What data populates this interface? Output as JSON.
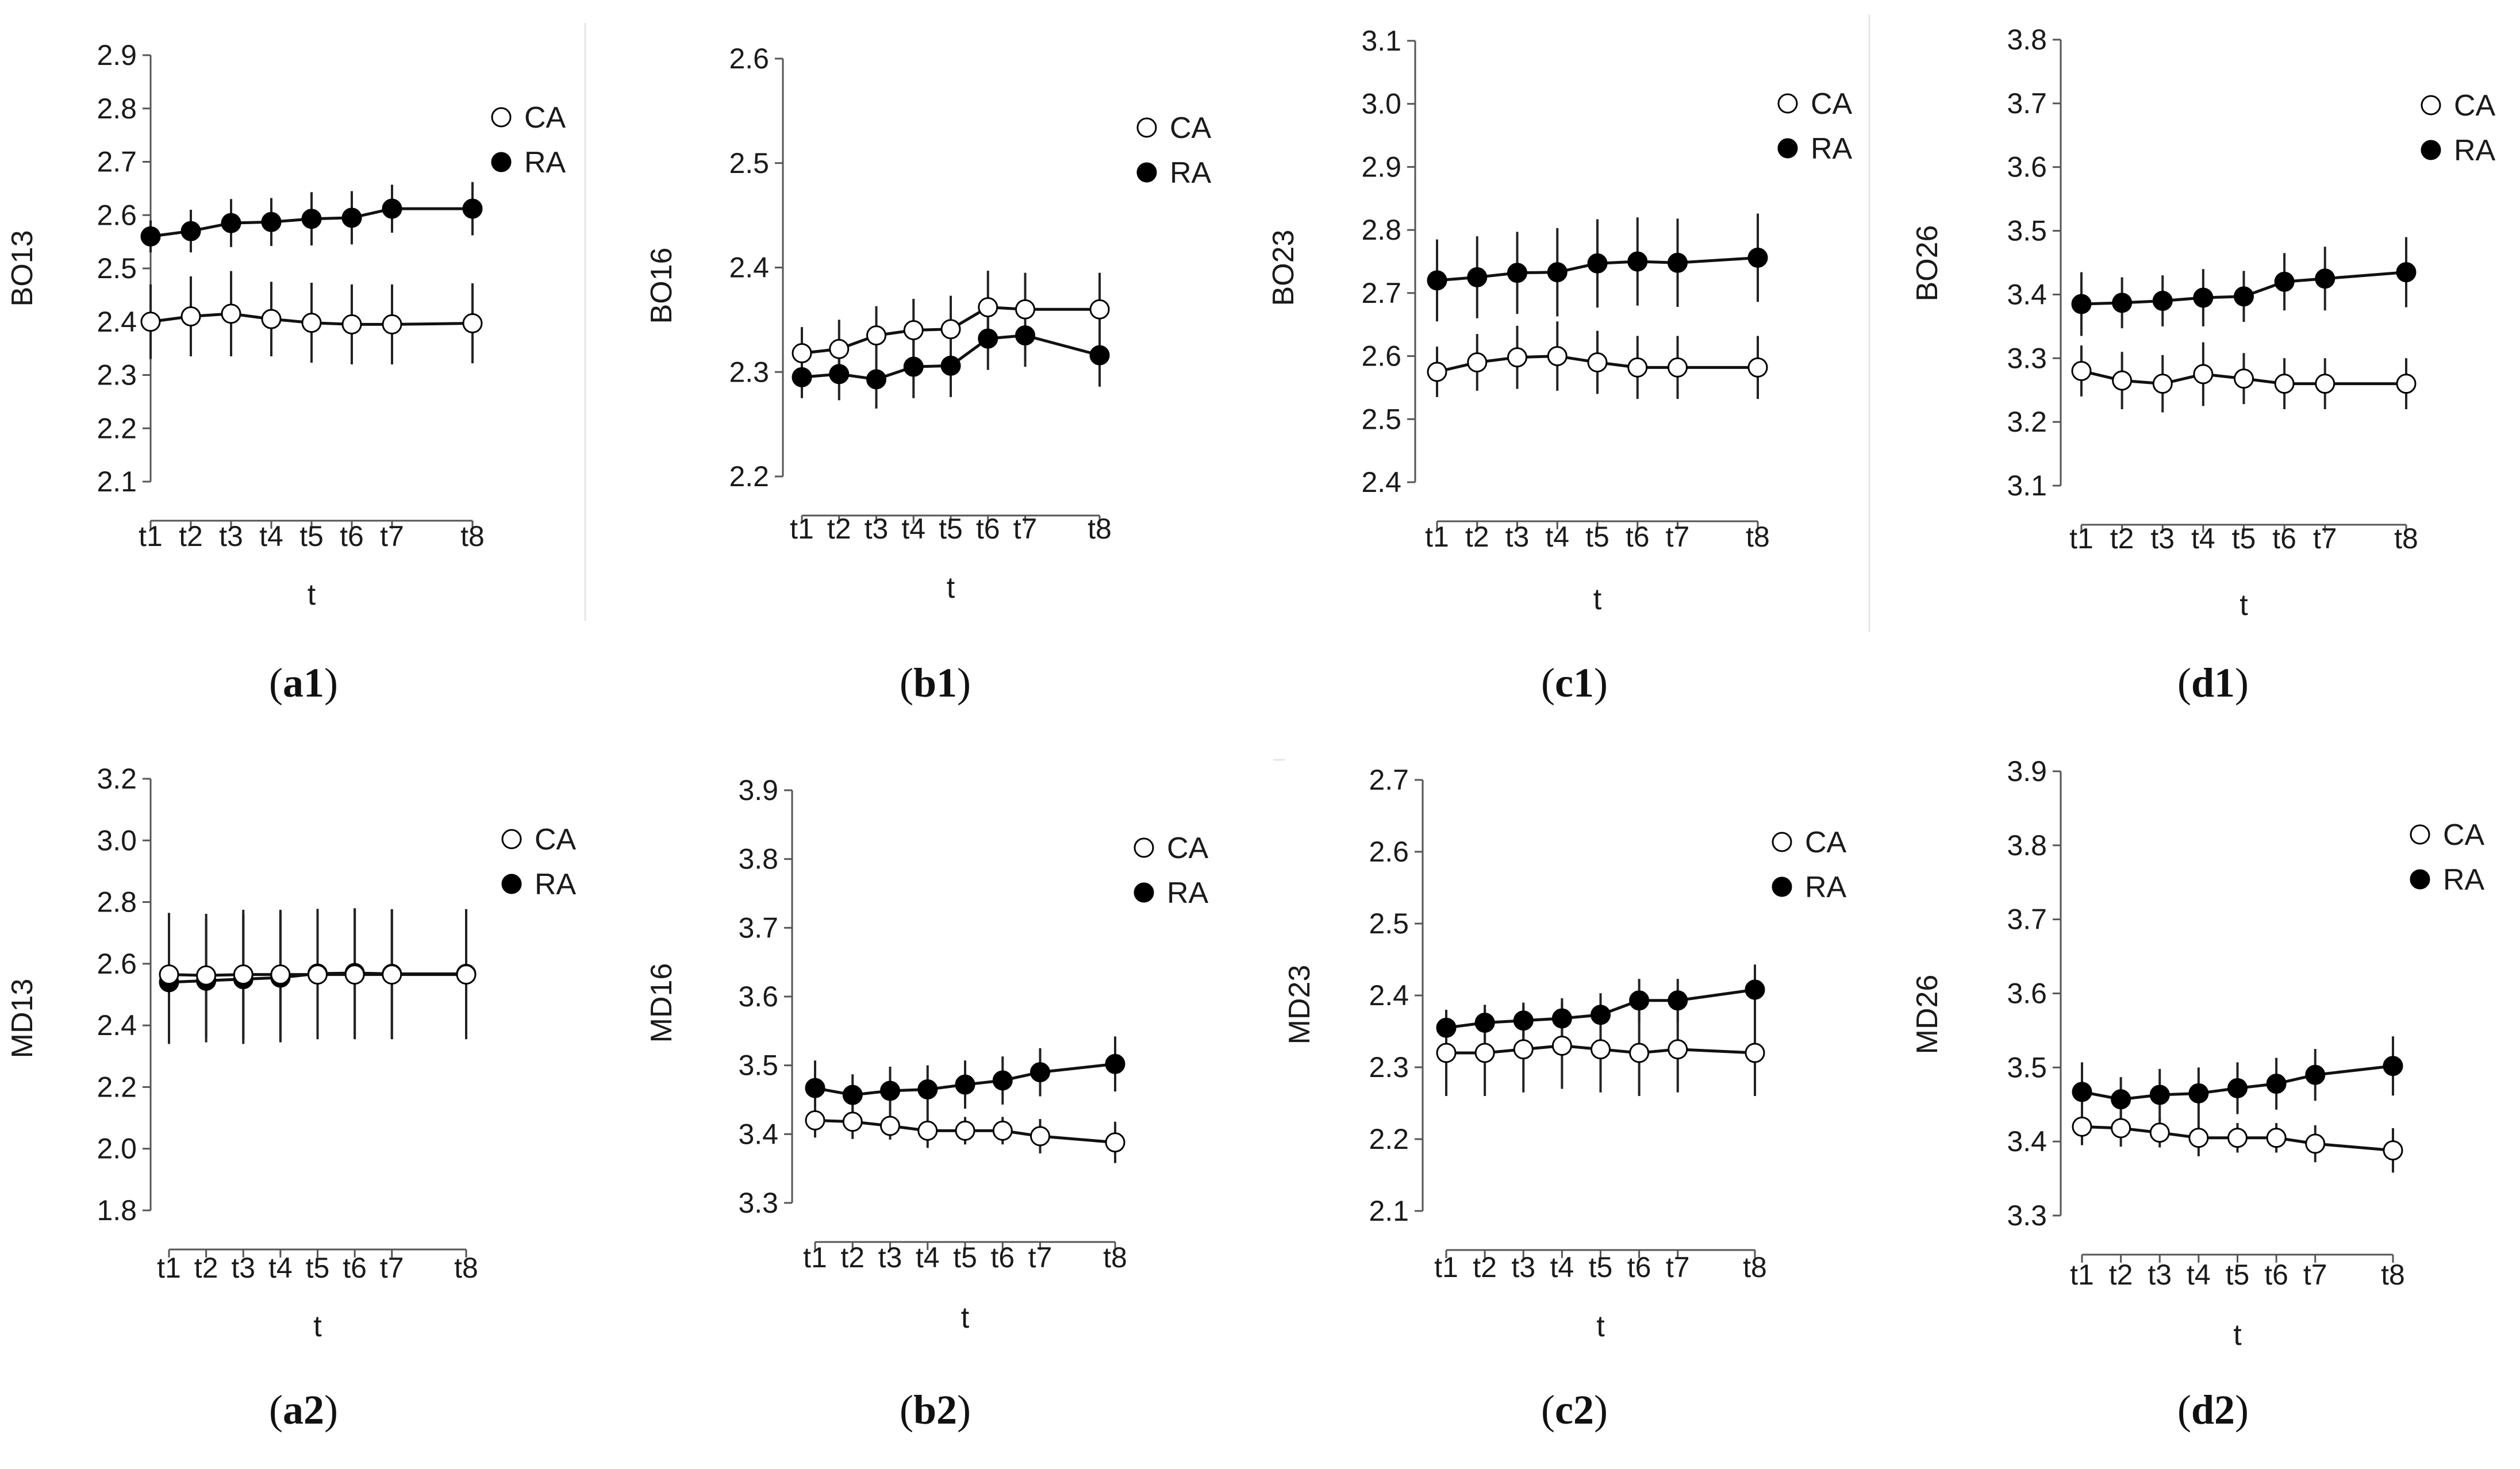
{
  "x_labels": [
    "t1",
    "t2",
    "t3",
    "t4",
    "t5",
    "t6",
    "t7",
    "t8"
  ],
  "x_axis_label": "t",
  "legend": [
    "CA",
    "RA"
  ],
  "chart_data": [
    {
      "id": "a1",
      "type": "line",
      "label_letter": "a",
      "label_number": "1",
      "ylabel": "BO13",
      "yticks": [
        "2.1",
        "2.2",
        "2.3",
        "2.4",
        "2.5",
        "2.6",
        "2.7",
        "2.8",
        "2.9"
      ],
      "ylim": [
        2.1,
        2.9
      ],
      "x": [
        1,
        2,
        3,
        4,
        5,
        6,
        7,
        9
      ],
      "series": [
        {
          "name": "CA",
          "values": [
            2.4,
            2.41,
            2.415,
            2.405,
            2.398,
            2.395,
            2.395,
            2.397
          ],
          "errors": [
            0.07,
            0.075,
            0.08,
            0.07,
            0.075,
            0.075,
            0.075,
            0.075
          ]
        },
        {
          "name": "RA",
          "values": [
            2.56,
            2.57,
            2.585,
            2.587,
            2.593,
            2.595,
            2.612,
            2.612
          ],
          "errors": [
            0.03,
            0.04,
            0.045,
            0.045,
            0.05,
            0.05,
            0.045,
            0.05
          ]
        }
      ]
    },
    {
      "id": "b1",
      "type": "line",
      "label_letter": "b",
      "label_number": "1",
      "ylabel": "BO16",
      "yticks": [
        "2.2",
        "2.3",
        "2.4",
        "2.5",
        "2.6"
      ],
      "ylim": [
        2.2,
        2.6
      ],
      "x": [
        1,
        2,
        3,
        4,
        5,
        6,
        7,
        9
      ],
      "series": [
        {
          "name": "CA",
          "values": [
            2.318,
            2.322,
            2.335,
            2.34,
            2.341,
            2.362,
            2.36,
            2.36
          ],
          "errors": [
            0.025,
            0.028,
            0.028,
            0.03,
            0.032,
            0.035,
            0.035,
            0.035
          ]
        },
        {
          "name": "RA",
          "values": [
            2.295,
            2.298,
            2.293,
            2.305,
            2.306,
            2.332,
            2.335,
            2.316
          ],
          "errors": [
            0.02,
            0.025,
            0.028,
            0.03,
            0.03,
            0.03,
            0.03,
            0.03
          ]
        }
      ]
    },
    {
      "id": "c1",
      "type": "line",
      "label_letter": "c",
      "label_number": "1",
      "ylabel": "BO23",
      "yticks": [
        "2.4",
        "2.5",
        "2.6",
        "2.7",
        "2.8",
        "2.9",
        "3.0",
        "3.1"
      ],
      "ylim": [
        2.4,
        3.1
      ],
      "x": [
        1,
        2,
        3,
        4,
        5,
        6,
        7,
        9
      ],
      "series": [
        {
          "name": "CA",
          "values": [
            2.575,
            2.59,
            2.598,
            2.6,
            2.59,
            2.582,
            2.582,
            2.582
          ],
          "errors": [
            0.04,
            0.045,
            0.05,
            0.055,
            0.05,
            0.05,
            0.05,
            0.05
          ]
        },
        {
          "name": "RA",
          "values": [
            2.72,
            2.725,
            2.732,
            2.733,
            2.747,
            2.75,
            2.748,
            2.756
          ],
          "errors": [
            0.065,
            0.065,
            0.065,
            0.07,
            0.07,
            0.07,
            0.07,
            0.07
          ]
        }
      ]
    },
    {
      "id": "d1",
      "type": "line",
      "label_letter": "d",
      "label_number": "1",
      "ylabel": "BO26",
      "yticks": [
        "3.1",
        "3.2",
        "3.3",
        "3.4",
        "3.5",
        "3.6",
        "3.7",
        "3.8"
      ],
      "ylim": [
        3.1,
        3.8
      ],
      "x": [
        1,
        2,
        3,
        4,
        5,
        6,
        7,
        9
      ],
      "series": [
        {
          "name": "CA",
          "values": [
            3.28,
            3.265,
            3.26,
            3.275,
            3.268,
            3.26,
            3.26,
            3.26
          ],
          "errors": [
            0.04,
            0.045,
            0.045,
            0.05,
            0.04,
            0.04,
            0.04,
            0.04
          ]
        },
        {
          "name": "RA",
          "values": [
            3.385,
            3.387,
            3.39,
            3.395,
            3.397,
            3.42,
            3.425,
            3.435
          ],
          "errors": [
            0.05,
            0.04,
            0.04,
            0.045,
            0.04,
            0.045,
            0.05,
            0.055
          ]
        }
      ]
    },
    {
      "id": "a2",
      "type": "line",
      "label_letter": "a",
      "label_number": "2",
      "ylabel": "MD13",
      "yticks": [
        "1.8",
        "2.0",
        "2.2",
        "2.4",
        "2.6",
        "2.8",
        "3.0",
        "3.2"
      ],
      "ylim": [
        1.8,
        3.2
      ],
      "x": [
        1,
        2,
        3,
        4,
        5,
        6,
        7,
        9
      ],
      "series": [
        {
          "name": "CA",
          "values": [
            2.565,
            2.562,
            2.565,
            2.565,
            2.565,
            2.565,
            2.565,
            2.565
          ],
          "errors": [
            0.2,
            0.2,
            0.21,
            0.21,
            0.21,
            0.21,
            0.21,
            0.21
          ]
        },
        {
          "name": "RA",
          "values": [
            2.54,
            2.545,
            2.55,
            2.555,
            2.568,
            2.57,
            2.567,
            2.567
          ],
          "errors": [
            0.2,
            0.2,
            0.21,
            0.21,
            0.21,
            0.21,
            0.21,
            0.21
          ]
        }
      ]
    },
    {
      "id": "b2",
      "type": "line",
      "label_letter": "b",
      "label_number": "2",
      "ylabel": "MD16",
      "yticks": [
        "3.3",
        "3.4",
        "3.5",
        "3.6",
        "3.7",
        "3.8",
        "3.9"
      ],
      "ylim": [
        3.3,
        3.9
      ],
      "x": [
        1,
        2,
        3,
        4,
        5,
        6,
        7,
        9
      ],
      "series": [
        {
          "name": "CA",
          "values": [
            3.42,
            3.418,
            3.412,
            3.405,
            3.405,
            3.405,
            3.397,
            3.388
          ],
          "errors": [
            0.025,
            0.025,
            0.02,
            0.025,
            0.02,
            0.02,
            0.025,
            0.03
          ]
        },
        {
          "name": "RA",
          "values": [
            3.467,
            3.457,
            3.463,
            3.465,
            3.472,
            3.478,
            3.49,
            3.502
          ],
          "errors": [
            0.04,
            0.03,
            0.035,
            0.035,
            0.035,
            0.035,
            0.035,
            0.04
          ]
        }
      ]
    },
    {
      "id": "c2",
      "type": "line",
      "label_letter": "c",
      "label_number": "2",
      "ylabel": "MD23",
      "yticks": [
        "2.1",
        "2.2",
        "2.3",
        "2.4",
        "2.5",
        "2.6",
        "2.7"
      ],
      "ylim": [
        2.1,
        2.7
      ],
      "x": [
        1,
        2,
        3,
        4,
        5,
        6,
        7,
        9
      ],
      "series": [
        {
          "name": "CA",
          "values": [
            2.32,
            2.32,
            2.325,
            2.33,
            2.325,
            2.32,
            2.325,
            2.32
          ],
          "errors": [
            0.06,
            0.06,
            0.06,
            0.06,
            0.06,
            0.06,
            0.06,
            0.06
          ]
        },
        {
          "name": "RA",
          "values": [
            2.355,
            2.362,
            2.365,
            2.368,
            2.373,
            2.393,
            2.393,
            2.408
          ],
          "errors": [
            0.025,
            0.025,
            0.025,
            0.028,
            0.03,
            0.03,
            0.03,
            0.035
          ]
        }
      ]
    },
    {
      "id": "d2",
      "type": "line",
      "label_letter": "d",
      "label_number": "2",
      "ylabel": "MD26",
      "yticks": [
        "3.3",
        "3.4",
        "3.5",
        "3.6",
        "3.7",
        "3.8",
        "3.9"
      ],
      "ylim": [
        3.3,
        3.9
      ],
      "x": [
        1,
        2,
        3,
        4,
        5,
        6,
        7,
        9
      ],
      "series": [
        {
          "name": "CA",
          "values": [
            3.42,
            3.418,
            3.412,
            3.405,
            3.405,
            3.405,
            3.397,
            3.388
          ],
          "errors": [
            0.025,
            0.025,
            0.02,
            0.025,
            0.02,
            0.02,
            0.025,
            0.03
          ]
        },
        {
          "name": "RA",
          "values": [
            3.467,
            3.457,
            3.463,
            3.465,
            3.472,
            3.478,
            3.49,
            3.502
          ],
          "errors": [
            0.04,
            0.03,
            0.035,
            0.035,
            0.035,
            0.035,
            0.035,
            0.04
          ]
        }
      ]
    }
  ]
}
